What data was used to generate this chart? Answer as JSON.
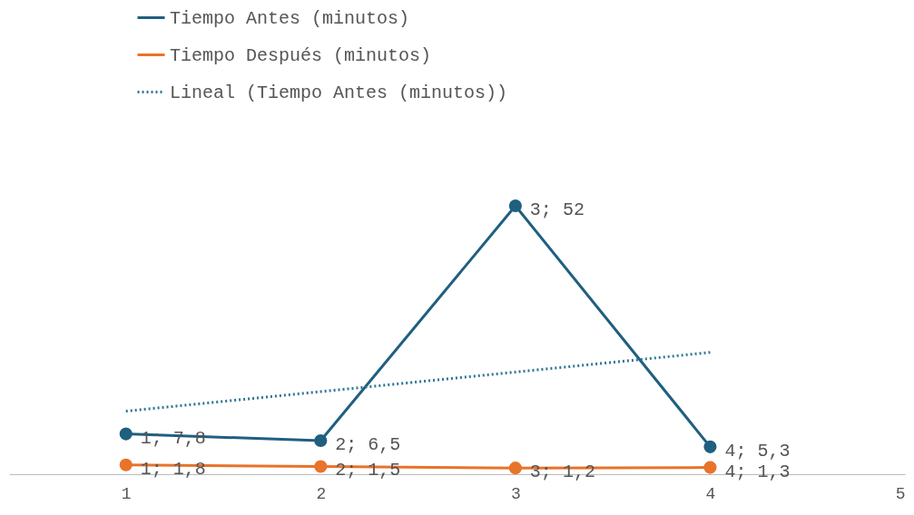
{
  "chart_data": {
    "type": "line",
    "x": [
      1,
      2,
      3,
      4
    ],
    "xlim": [
      0.4,
      5
    ],
    "xticks": [
      1,
      2,
      3,
      4,
      5
    ],
    "tick_labels": "x",
    "grid": false,
    "legend": "top",
    "marker": "circle",
    "line_style": "solid",
    "series": [
      {
        "name": "Tiempo Antes (minutos)",
        "color": "#1f5f80",
        "values": [
          7.8,
          6.5,
          52,
          5.3
        ],
        "value_labels": [
          "1; 7,8",
          "2; 6,5",
          "3; 52",
          "4; 5,3"
        ]
      },
      {
        "name": "Tiempo Después (minutos)",
        "color": "#e8732a",
        "values": [
          1.8,
          1.5,
          1.2,
          1.3
        ],
        "value_labels": [
          "1; 1,8",
          "2; 1,5",
          "3; 1,2",
          "4; 1,3"
        ]
      },
      {
        "name": "Lineal (Tiempo Antes (minutos))",
        "color": "#2e7595",
        "type": "line",
        "x": [
          1,
          4
        ],
        "values": [
          12.2,
          23.6
        ],
        "line_style": "dotted",
        "marker": "none"
      }
    ]
  }
}
